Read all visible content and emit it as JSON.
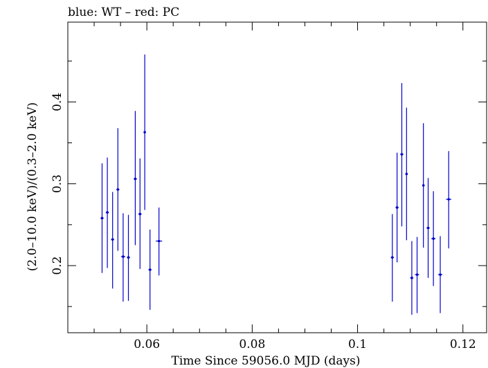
{
  "chart_data": {
    "type": "scatter",
    "title": "blue: WT – red: PC",
    "xlabel": "Time Since 59056.0 MJD (days)",
    "ylabel": "(2.0–10.0 keV)/(0.3–2.0 keV)",
    "xlim": [
      0.045,
      0.1245
    ],
    "ylim": [
      0.118,
      0.4975
    ],
    "x_ticks": [
      0.06,
      0.08,
      0.1,
      0.12
    ],
    "x_tick_labels": [
      "0.06",
      "0.08",
      "0.1",
      "0.12"
    ],
    "y_ticks": [
      0.2,
      0.3,
      0.4
    ],
    "y_tick_labels": [
      "0.2",
      "0.3",
      "0.4"
    ],
    "grid": false,
    "series": [
      {
        "color": "#0000cc",
        "points": [
          {
            "x": 0.0515,
            "xerr": 0.0003,
            "y": 0.258,
            "ylo": 0.191,
            "yhi": 0.325
          },
          {
            "x": 0.0525,
            "xerr": 0.0003,
            "y": 0.265,
            "ylo": 0.197,
            "yhi": 0.332
          },
          {
            "x": 0.0535,
            "xerr": 0.0003,
            "y": 0.232,
            "ylo": 0.172,
            "yhi": 0.29
          },
          {
            "x": 0.0545,
            "xerr": 0.0003,
            "y": 0.293,
            "ylo": 0.218,
            "yhi": 0.368
          },
          {
            "x": 0.0555,
            "xerr": 0.0004,
            "y": 0.211,
            "ylo": 0.156,
            "yhi": 0.264
          },
          {
            "x": 0.0565,
            "xerr": 0.0003,
            "y": 0.21,
            "ylo": 0.157,
            "yhi": 0.262
          },
          {
            "x": 0.0578,
            "xerr": 0.0003,
            "y": 0.306,
            "ylo": 0.225,
            "yhi": 0.389
          },
          {
            "x": 0.0587,
            "xerr": 0.0003,
            "y": 0.263,
            "ylo": 0.196,
            "yhi": 0.331
          },
          {
            "x": 0.0596,
            "xerr": 0.0002,
            "y": 0.363,
            "ylo": 0.268,
            "yhi": 0.458
          },
          {
            "x": 0.0606,
            "xerr": 0.0003,
            "y": 0.195,
            "ylo": 0.146,
            "yhi": 0.244
          },
          {
            "x": 0.0623,
            "xerr": 0.0006,
            "y": 0.23,
            "ylo": 0.188,
            "yhi": 0.271
          },
          {
            "x": 0.1066,
            "xerr": 0.0003,
            "y": 0.21,
            "ylo": 0.156,
            "yhi": 0.263
          },
          {
            "x": 0.1075,
            "xerr": 0.0003,
            "y": 0.271,
            "ylo": 0.204,
            "yhi": 0.338
          },
          {
            "x": 0.1084,
            "xerr": 0.0003,
            "y": 0.336,
            "ylo": 0.248,
            "yhi": 0.423
          },
          {
            "x": 0.1093,
            "xerr": 0.0002,
            "y": 0.312,
            "ylo": 0.231,
            "yhi": 0.393
          },
          {
            "x": 0.1103,
            "xerr": 0.0003,
            "y": 0.185,
            "ylo": 0.14,
            "yhi": 0.23
          },
          {
            "x": 0.1113,
            "xerr": 0.0004,
            "y": 0.189,
            "ylo": 0.142,
            "yhi": 0.235
          },
          {
            "x": 0.1125,
            "xerr": 0.0002,
            "y": 0.298,
            "ylo": 0.222,
            "yhi": 0.374
          },
          {
            "x": 0.1134,
            "xerr": 0.0003,
            "y": 0.246,
            "ylo": 0.185,
            "yhi": 0.307
          },
          {
            "x": 0.1144,
            "xerr": 0.0004,
            "y": 0.233,
            "ylo": 0.175,
            "yhi": 0.291
          },
          {
            "x": 0.1157,
            "xerr": 0.0004,
            "y": 0.189,
            "ylo": 0.142,
            "yhi": 0.236
          },
          {
            "x": 0.1173,
            "xerr": 0.0005,
            "y": 0.281,
            "ylo": 0.221,
            "yhi": 0.34
          }
        ]
      }
    ]
  }
}
